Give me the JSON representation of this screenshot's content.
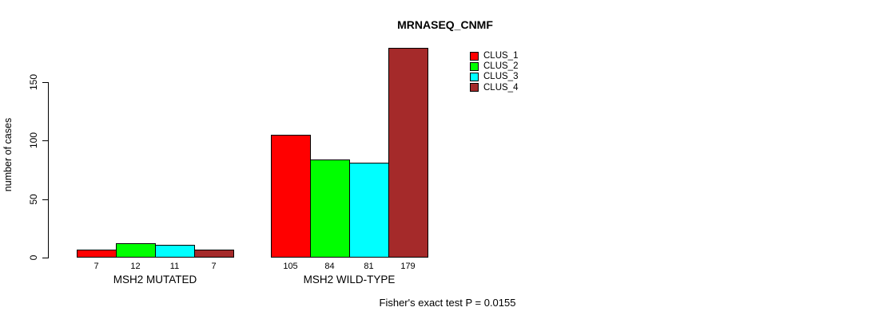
{
  "title": "MRNASEQ_CNMF",
  "footer": "Fisher's exact test P = 0.0155",
  "chart_data": {
    "type": "bar",
    "title": "MRNASEQ_CNMF",
    "ylabel": "number of cases",
    "xlabel": "",
    "categories": [
      "MSH2 MUTATED",
      "MSH2 WILD-TYPE"
    ],
    "series": [
      {
        "name": "CLUS_1",
        "color": "#FF0000",
        "values": [
          7,
          105
        ]
      },
      {
        "name": "CLUS_2",
        "color": "#00FF00",
        "values": [
          12,
          84
        ]
      },
      {
        "name": "CLUS_3",
        "color": "#00FFFF",
        "values": [
          11,
          81
        ]
      },
      {
        "name": "CLUS_4",
        "color": "#A52A2A",
        "values": [
          7,
          179
        ]
      }
    ],
    "yticks": [
      0,
      50,
      100,
      150
    ],
    "ylim": [
      0,
      180
    ],
    "bar_value_labels_shown": true,
    "grid": false,
    "legend_position": "topright",
    "annotation": "Fisher's exact test P = 0.0155"
  }
}
